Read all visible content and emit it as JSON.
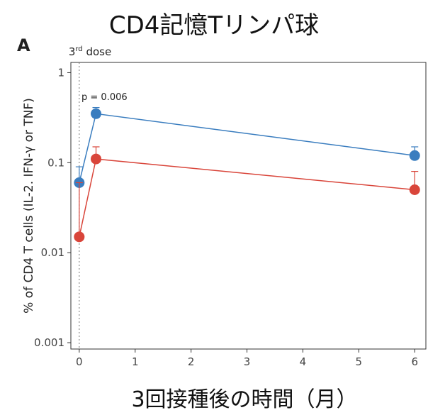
{
  "header": {
    "title": "CD4記憶Tリンパ球",
    "panel_letter": "A"
  },
  "chart_data": {
    "type": "line",
    "title": "CD4記憶Tリンパ球",
    "xlabel": "3回接種後の時間（月）",
    "ylabel": "% of CD4 T cells (IL-2. IFN-γ or TNF)",
    "yscale": "log",
    "xlim": [
      -0.15,
      6.2
    ],
    "ylim": [
      0.00085,
      1.3
    ],
    "x_ticks": [
      "0",
      "1",
      "2",
      "3",
      "4",
      "5",
      "6"
    ],
    "y_ticks": [
      "1",
      "0.1",
      "0.01",
      "0.001"
    ],
    "vline": {
      "x": 0,
      "label_base": "3",
      "label_sup": "rd",
      "label_rest": " dose"
    },
    "annotation": "p = 0.006",
    "grid": false,
    "series": [
      {
        "color": "#3a7dbf",
        "x": [
          0,
          0.3,
          6
        ],
        "y": [
          0.06,
          0.35,
          0.12
        ],
        "err_upper": [
          0.09,
          0.41,
          0.15
        ]
      },
      {
        "color": "#d9453a",
        "x": [
          0,
          0.3,
          6
        ],
        "y": [
          0.015,
          0.11,
          0.05
        ],
        "err_upper": [
          0.06,
          0.15,
          0.08
        ]
      }
    ]
  }
}
